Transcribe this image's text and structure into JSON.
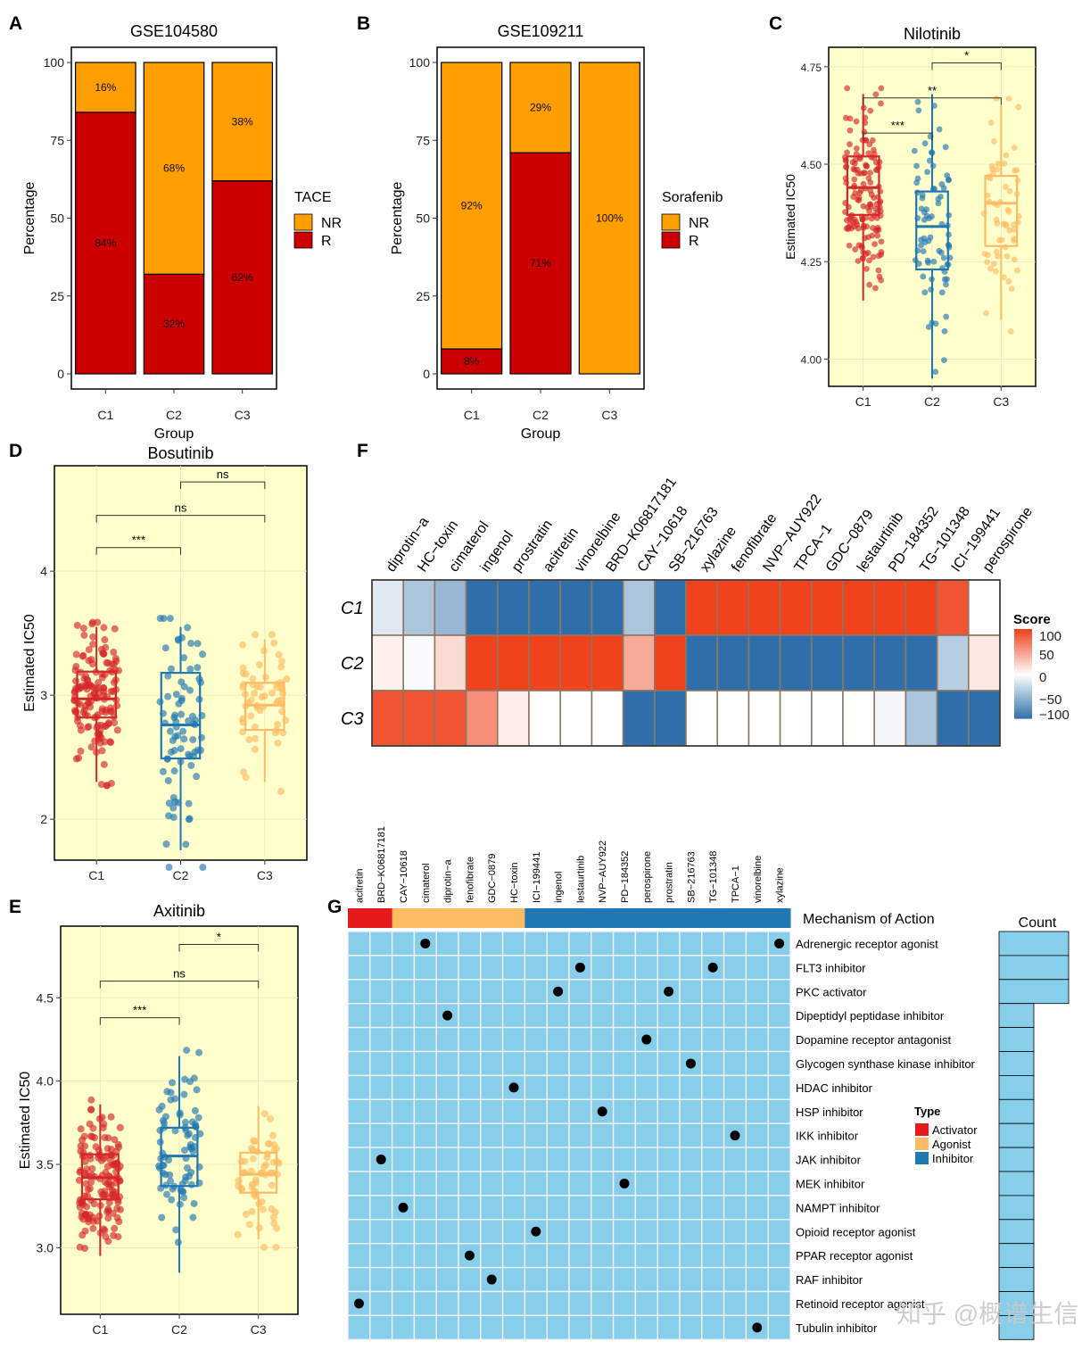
{
  "colors": {
    "C1": "#D62728",
    "C2": "#1F77B4",
    "C3": "#FDBB63",
    "NR": "#FF9E00",
    "R": "#CC0000",
    "panel_bg": "#FFFFCC",
    "heat_neg": "#2E6FAB",
    "heat_mid": "#FFFFFF",
    "heat_pos": "#F0421C",
    "g_cell": "#87CEEB",
    "activator": "#E41A1C",
    "agonist": "#FDBB63",
    "inhibitor": "#1F77B4"
  },
  "panels": {
    "A": "A",
    "B": "B",
    "C": "C",
    "D": "D",
    "E": "E",
    "F": "F",
    "G": "G"
  },
  "chart_data": [
    {
      "id": "A",
      "type": "bar",
      "stacked": true,
      "title": "GSE104580",
      "xlabel": "Group",
      "ylabel": "Percentage",
      "ylim": [
        0,
        100
      ],
      "yticks": [
        0,
        25,
        50,
        75,
        100
      ],
      "categories": [
        "C1",
        "C2",
        "C3"
      ],
      "series": [
        {
          "name": "R",
          "values": [
            84,
            32,
            62
          ],
          "labels": [
            "84%",
            "32%",
            "62%"
          ]
        },
        {
          "name": "NR",
          "values": [
            16,
            68,
            38
          ],
          "labels": [
            "16%",
            "68%",
            "38%"
          ]
        }
      ],
      "legend_title": "TACE",
      "legend": [
        "NR",
        "R"
      ]
    },
    {
      "id": "B",
      "type": "bar",
      "stacked": true,
      "title": "GSE109211",
      "xlabel": "Group",
      "ylabel": "Percentage",
      "ylim": [
        0,
        100
      ],
      "yticks": [
        0,
        25,
        50,
        75,
        100
      ],
      "categories": [
        "C1",
        "C2",
        "C3"
      ],
      "series": [
        {
          "name": "R",
          "values": [
            8,
            71,
            0
          ],
          "labels": [
            "8%",
            "71%",
            ""
          ]
        },
        {
          "name": "NR",
          "values": [
            92,
            29,
            100
          ],
          "labels": [
            "92%",
            "29%",
            "100%"
          ]
        }
      ],
      "legend_title": "Sorafenib",
      "legend": [
        "NR",
        "R"
      ]
    },
    {
      "id": "C",
      "type": "box",
      "title": "Nilotinib",
      "ylabel": "Estimated IC50",
      "ylim": [
        3.93,
        4.8
      ],
      "yticks": [
        4.0,
        4.25,
        4.5,
        4.75
      ],
      "ytick_labels": [
        "4.00",
        "4.25",
        "4.50",
        "4.75"
      ],
      "categories": [
        "C1",
        "C2",
        "C3"
      ],
      "boxes": [
        {
          "group": "C1",
          "q1": 4.37,
          "median": 4.44,
          "q3": 4.52,
          "whisker_low": 4.15,
          "whisker_high": 4.68,
          "n": 150
        },
        {
          "group": "C2",
          "q1": 4.23,
          "median": 4.34,
          "q3": 4.43,
          "whisker_low": 3.95,
          "whisker_high": 4.68,
          "n": 80
        },
        {
          "group": "C3",
          "q1": 4.29,
          "median": 4.4,
          "q3": 4.47,
          "whisker_low": 4.1,
          "whisker_high": 4.65,
          "n": 60
        }
      ],
      "comparisons": [
        {
          "from": "C2",
          "to": "C3",
          "label": "*",
          "y": 4.76
        },
        {
          "from": "C1",
          "to": "C3",
          "label": "**",
          "y": 4.67
        },
        {
          "from": "C1",
          "to": "C2",
          "label": "***",
          "y": 4.58
        }
      ]
    },
    {
      "id": "D",
      "type": "box",
      "title": "Bosutinib",
      "ylabel": "Estimated IC50",
      "ylim": [
        1.67,
        4.85
      ],
      "yticks": [
        2,
        3,
        4
      ],
      "ytick_labels": [
        "2",
        "3",
        "4"
      ],
      "categories": [
        "C1",
        "C2",
        "C3"
      ],
      "boxes": [
        {
          "group": "C1",
          "q1": 2.82,
          "median": 2.97,
          "q3": 3.19,
          "whisker_low": 2.3,
          "whisker_high": 3.55,
          "n": 150
        },
        {
          "group": "C2",
          "q1": 2.49,
          "median": 2.76,
          "q3": 3.18,
          "whisker_low": 1.75,
          "whisker_high": 3.55,
          "n": 80
        },
        {
          "group": "C3",
          "q1": 2.72,
          "median": 2.92,
          "q3": 3.1,
          "whisker_low": 2.3,
          "whisker_high": 3.45,
          "n": 60
        }
      ],
      "comparisons": [
        {
          "from": "C2",
          "to": "C3",
          "label": "ns",
          "y": 4.72
        },
        {
          "from": "C1",
          "to": "C3",
          "label": "ns",
          "y": 4.45
        },
        {
          "from": "C1",
          "to": "C2",
          "label": "***",
          "y": 4.19
        }
      ]
    },
    {
      "id": "E",
      "type": "box",
      "title": "Axitinib",
      "ylabel": "Estimated IC50",
      "ylim": [
        2.6,
        4.93
      ],
      "yticks": [
        3.0,
        3.5,
        4.0,
        4.5
      ],
      "ytick_labels": [
        "3.0",
        "3.5",
        "4.0",
        "4.5"
      ],
      "categories": [
        "C1",
        "C2",
        "C3"
      ],
      "boxes": [
        {
          "group": "C1",
          "q1": 3.29,
          "median": 3.42,
          "q3": 3.56,
          "whisker_low": 2.95,
          "whisker_high": 3.86,
          "n": 150
        },
        {
          "group": "C2",
          "q1": 3.37,
          "median": 3.55,
          "q3": 3.72,
          "whisker_low": 2.85,
          "whisker_high": 4.15,
          "n": 80
        },
        {
          "group": "C3",
          "q1": 3.33,
          "median": 3.44,
          "q3": 3.57,
          "whisker_low": 3.05,
          "whisker_high": 3.85,
          "n": 60
        }
      ],
      "comparisons": [
        {
          "from": "C2",
          "to": "C3",
          "label": "*",
          "y": 4.82
        },
        {
          "from": "C1",
          "to": "C3",
          "label": "ns",
          "y": 4.6
        },
        {
          "from": "C1",
          "to": "C2",
          "label": "***",
          "y": 4.38
        }
      ]
    },
    {
      "id": "F",
      "type": "heatmap",
      "columns": [
        "diprotin−a",
        "HC−toxin",
        "cimaterol",
        "ingenol",
        "prostratin",
        "acitretin",
        "vinorelbine",
        "BRD−K06817181",
        "CAY−10618",
        "SB−216763",
        "xylazine",
        "fenofibrate",
        "NVP−AUY922",
        "TPCA−1",
        "GDC−0879",
        "lestaurtinib",
        "PD−184352",
        "TG−101348",
        "ICI−199441",
        "perospirone"
      ],
      "rows": [
        "C1",
        "C2",
        "C3"
      ],
      "values": [
        [
          -15,
          -40,
          -50,
          -100,
          -100,
          -100,
          -100,
          -100,
          -40,
          -100,
          100,
          100,
          100,
          100,
          100,
          100,
          100,
          100,
          90,
          0
        ],
        [
          8,
          -3,
          20,
          100,
          100,
          100,
          100,
          100,
          45,
          100,
          -100,
          -100,
          -100,
          -100,
          -100,
          -100,
          -100,
          -100,
          -35,
          12
        ],
        [
          90,
          90,
          90,
          60,
          10,
          0,
          0,
          0,
          -100,
          -100,
          0,
          0,
          0,
          0,
          0,
          0,
          -5,
          -40,
          -100,
          -100
        ]
      ],
      "legend_title": "Score",
      "legend_ticks": [
        "100",
        "50",
        "0",
        "−50",
        "−100"
      ]
    },
    {
      "id": "G",
      "type": "table",
      "columns": [
        "acitretin",
        "BRD−K06817181",
        "CAY−10618",
        "cimaterol",
        "diprotin−a",
        "fenofibrate",
        "GDC−0879",
        "HC−toxin",
        "ICI−199441",
        "ingenol",
        "lestaurtinib",
        "NVP−AUY922",
        "PD−184352",
        "perospirone",
        "prostratin",
        "SB−216763",
        "TG−101348",
        "TPCA−1",
        "vinorelbine",
        "xylazine"
      ],
      "column_types": [
        "Activator",
        "Activator",
        "Agonist",
        "Agonist",
        "Agonist",
        "Agonist",
        "Agonist",
        "Agonist",
        "Inhibitor",
        "Inhibitor",
        "Inhibitor",
        "Inhibitor",
        "Inhibitor",
        "Inhibitor",
        "Inhibitor",
        "Inhibitor",
        "Inhibitor",
        "Inhibitor",
        "Inhibitor",
        "Inhibitor"
      ],
      "rows": [
        "Adrenergic receptor agonist",
        "FLT3 inhibitor",
        "PKC activator",
        "Dipeptidyl peptidase inhibitor",
        "Dopamine receptor antagonist",
        "Glycogen synthase kinase inhibitor",
        "HDAC inhibitor",
        "HSP inhibitor",
        "IKK inhibitor",
        "JAK inhibitor",
        "MEK inhibitor",
        "NAMPT inhibitor",
        "Opioid receptor agonist",
        "PPAR receptor agonist",
        "RAF inhibitor",
        "Retinoid receptor agonist",
        "Tubulin inhibitor"
      ],
      "dots": [
        [
          0,
          3
        ],
        [
          0,
          19
        ],
        [
          1,
          10
        ],
        [
          1,
          16
        ],
        [
          2,
          9
        ],
        [
          2,
          14
        ],
        [
          3,
          4
        ],
        [
          4,
          13
        ],
        [
          5,
          15
        ],
        [
          6,
          7
        ],
        [
          7,
          11
        ],
        [
          8,
          17
        ],
        [
          9,
          1
        ],
        [
          10,
          12
        ],
        [
          11,
          2
        ],
        [
          12,
          8
        ],
        [
          13,
          5
        ],
        [
          14,
          6
        ],
        [
          15,
          0
        ],
        [
          16,
          18
        ]
      ],
      "counts": [
        2,
        2,
        2,
        1,
        1,
        1,
        1,
        1,
        1,
        1,
        1,
        1,
        1,
        1,
        1,
        1,
        1
      ],
      "header_label": "Mechanism of Action",
      "count_label": "Count",
      "legend_title": "Type",
      "legend": [
        "Activator",
        "Agonist",
        "Inhibitor"
      ]
    }
  ],
  "watermark": "知乎 @概谱生信"
}
